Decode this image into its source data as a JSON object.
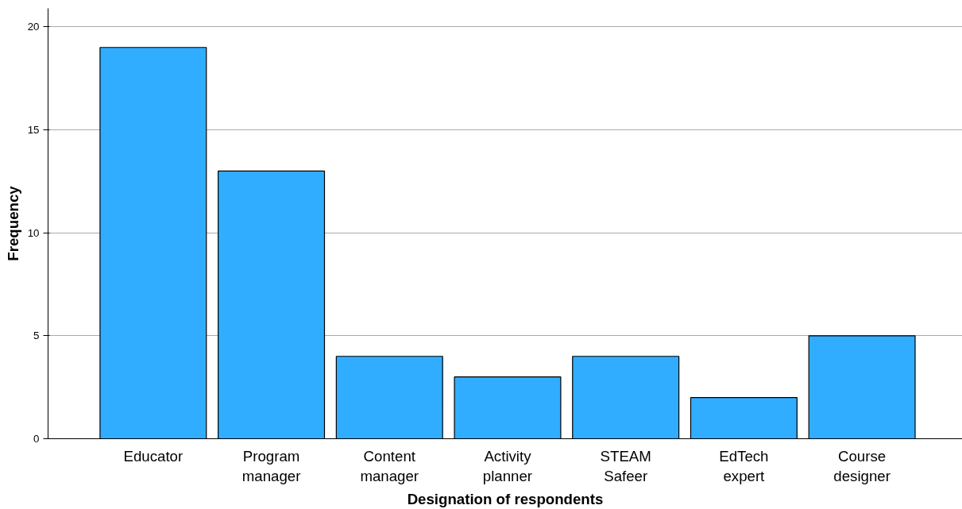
{
  "chart_data": {
    "type": "bar",
    "xlabel": "Designation of respondents",
    "ylabel": "Frequency",
    "categories": [
      "Educator",
      "Program\nmanager",
      "Content\nmanager",
      "Activity\nplanner",
      "STEAM\nSafeer",
      "EdTech\nexpert",
      "Course\ndesigner"
    ],
    "values": [
      19,
      13,
      4,
      3,
      4,
      2,
      5
    ],
    "color": "#31adff",
    "ylim": [
      0,
      20.9
    ],
    "yticks": [
      0,
      5,
      10,
      15,
      20
    ],
    "grid": "y"
  }
}
